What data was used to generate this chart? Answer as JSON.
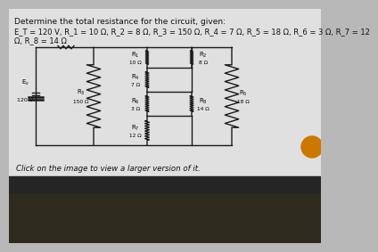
{
  "title": "Determine the total resistance for the circuit, given:",
  "given_line1": "E_T = 120 V, R_1 = 10 Ω, R_2 = 8 Ω, R_3 = 150 Ω, R_4 = 7 Ω, R_5 = 18 Ω, R_6 = 3 Ω, R_7 = 12",
  "given_line2": "Ω, R_8 = 14 Ω",
  "footer": "Click on the image to view a larger version of it.",
  "bg_top": "#e8e8e8",
  "bg_bottom": "#2a2a2a",
  "keyboard_color": "#3a3520",
  "wire_color": "#1a1a1a",
  "resistor_color": "#1a1a1a",
  "text_color": "#111111",
  "circuit_bg": "#d8d8d8"
}
